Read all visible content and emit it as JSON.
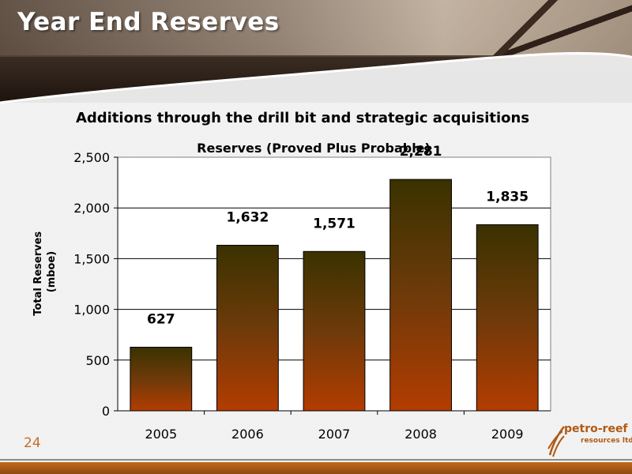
{
  "slide": {
    "title": "Year End Reserves",
    "subtitle": "Additions through the drill bit and strategic acquisitions",
    "page_number": "24",
    "logo": {
      "wordmark": "petro-reef",
      "sub": "resources ltd."
    }
  },
  "colors": {
    "bar_top": "#3a3200",
    "bar_bottom": "#b33c00",
    "accent": "#c06a1a"
  },
  "chart_data": {
    "type": "bar",
    "title": "Reserves (Proved Plus Probable)",
    "xlabel": "",
    "ylabel": "Total Reserves\n(mboe)",
    "ylabel_lines": [
      "Total Reserves",
      "(mboe)"
    ],
    "categories": [
      "2005",
      "2006",
      "2007",
      "2008",
      "2009"
    ],
    "values": [
      627,
      1632,
      1571,
      2281,
      1835
    ],
    "data_labels": [
      "627",
      "1,632",
      "1,571",
      "2,281",
      "1,835"
    ],
    "ylim": [
      0,
      2500
    ],
    "yticks": [
      0,
      500,
      1000,
      1500,
      2000,
      2500
    ],
    "ytick_labels": [
      "0",
      "500",
      "1,000",
      "1,500",
      "2,000",
      "2,500"
    ],
    "grid": true,
    "legend": "none"
  }
}
